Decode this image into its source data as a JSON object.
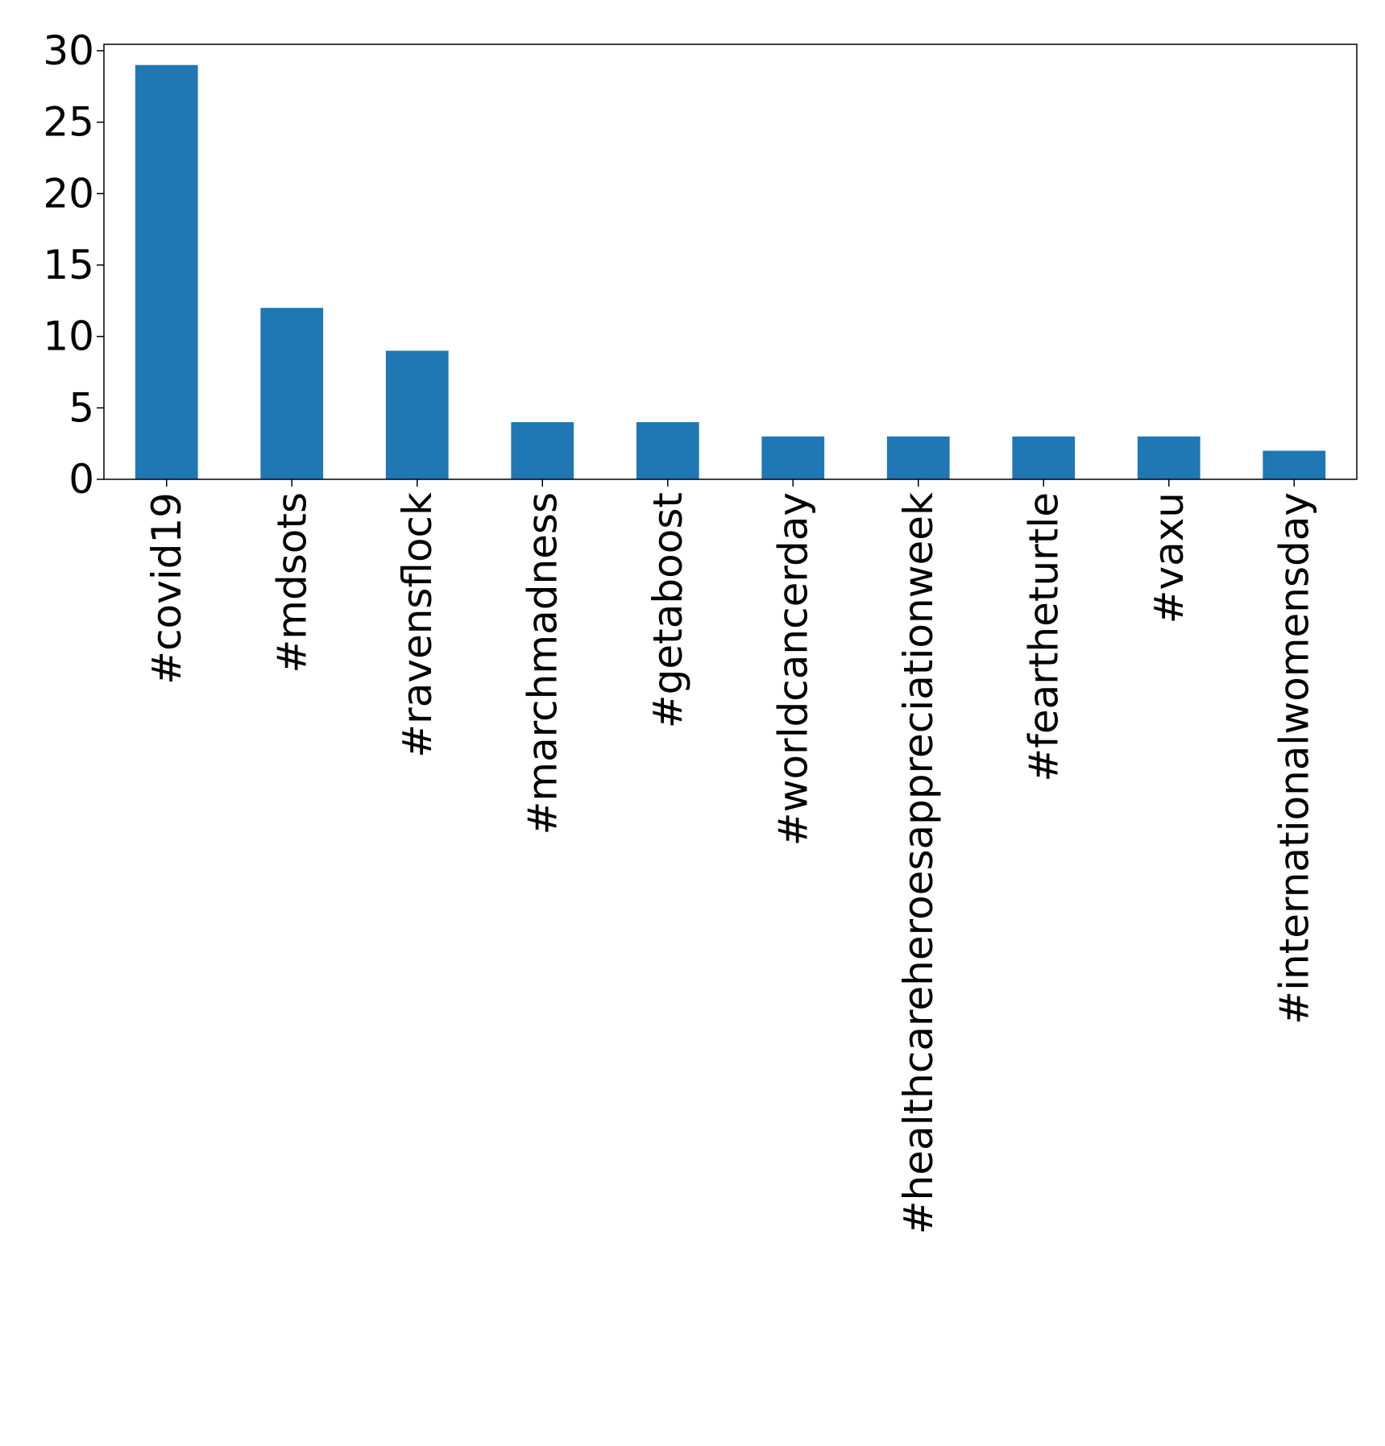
{
  "chart_data": {
    "type": "bar",
    "title": "",
    "xlabel": "",
    "ylabel": "",
    "categories": [
      "#covid19",
      "#mdsots",
      "#ravensflock",
      "#marchmadness",
      "#getaboost",
      "#worldcancerday",
      "#healthcareheroesappreciationweek",
      "#feartheturtle",
      "#vaxu",
      "#internationalwomensday"
    ],
    "values": [
      29,
      12,
      9,
      4,
      4,
      3,
      3,
      3,
      3,
      2
    ],
    "ylim": [
      0,
      30.45
    ],
    "yticks": [
      0,
      5,
      10,
      15,
      20,
      25,
      30
    ],
    "ytick_labels": [
      "0",
      "5",
      "10",
      "15",
      "20",
      "25",
      "30"
    ],
    "grid": false,
    "legend": "none",
    "colors": {
      "bar": "#1f77b4",
      "axis": "#000000",
      "background": "#ffffff"
    }
  }
}
